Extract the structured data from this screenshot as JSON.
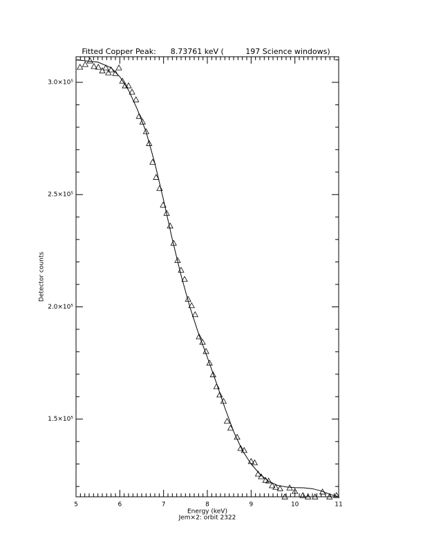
{
  "chart_data": {
    "type": "scatter",
    "title": "Fitted Copper Peak:      8.73761 keV (         197 Science windows)",
    "x_label": "Energy (keV)",
    "subtitle": "Jem×2: orbit 2322",
    "y_label": "Detector counts",
    "xlim": [
      5,
      11
    ],
    "xticks": [
      5,
      6,
      7,
      8,
      9,
      10,
      11
    ],
    "ylim": [
      115400,
      311400
    ],
    "yticks": [
      {
        "value": 150000,
        "label": "1.5×10⁵"
      },
      {
        "value": 200000,
        "label": "2.0×10⁵"
      },
      {
        "value": 250000,
        "label": "2.5×10⁵"
      },
      {
        "value": 300000,
        "label": "3.0×10⁵"
      }
    ],
    "series": [
      {
        "style": "triangles",
        "color": "#000000",
        "x": [
          5.09,
          5.21,
          5.32,
          5.41,
          5.51,
          5.6,
          5.68,
          5.74,
          5.8,
          5.9,
          5.98,
          6.06,
          6.12,
          6.2,
          6.28,
          6.37,
          6.44,
          6.52,
          6.6,
          6.67,
          6.75,
          6.83,
          6.91,
          6.99,
          7.07,
          7.15,
          7.23,
          7.32,
          7.4,
          7.48,
          7.56,
          7.64,
          7.72,
          7.81,
          7.89,
          7.97,
          8.05,
          8.13,
          8.21,
          8.28,
          8.37,
          8.45,
          8.53,
          8.68,
          8.76,
          8.84,
          9.0,
          9.08,
          9.16,
          9.23,
          9.33,
          9.4,
          9.48,
          9.56,
          9.66,
          9.77,
          9.88,
          10.0,
          10.18,
          10.3,
          10.46,
          10.63,
          10.79,
          10.95
        ],
        "values": [
          306800,
          308000,
          309600,
          307100,
          306800,
          305200,
          306500,
          304300,
          305600,
          304000,
          306500,
          300600,
          298500,
          298500,
          295700,
          292300,
          284900,
          282400,
          278100,
          272800,
          264500,
          257700,
          252800,
          245400,
          241700,
          236100,
          228400,
          220700,
          216400,
          212300,
          203400,
          200600,
          196600,
          186700,
          184300,
          180200,
          175000,
          169800,
          164500,
          160800,
          158000,
          149100,
          146000,
          142000,
          137000,
          136100,
          131200,
          130600,
          125600,
          124400,
          122800,
          122500,
          120400,
          119700,
          119100,
          115400,
          119400,
          117900,
          116000,
          115400,
          115400,
          117600,
          115400,
          116000
        ]
      },
      {
        "style": "line",
        "color": "#000000",
        "x": [
          5.0,
          5.5,
          5.8,
          6.0,
          6.2,
          6.4,
          6.6,
          6.8,
          7.0,
          7.2,
          7.4,
          7.6,
          7.8,
          8.0,
          8.2,
          8.4,
          8.6,
          8.8,
          9.0,
          9.2,
          9.4,
          9.6,
          9.8,
          10.0,
          10.2,
          10.4,
          10.6,
          10.8,
          11.0
        ],
        "values": [
          310000,
          309000,
          306500,
          302500,
          296500,
          288000,
          278000,
          264000,
          247500,
          230000,
          214000,
          200000,
          188000,
          177500,
          166500,
          155000,
          144500,
          136000,
          130000,
          125500,
          122300,
          120500,
          119800,
          119500,
          119400,
          119000,
          118000,
          116500,
          115400
        ]
      }
    ]
  }
}
